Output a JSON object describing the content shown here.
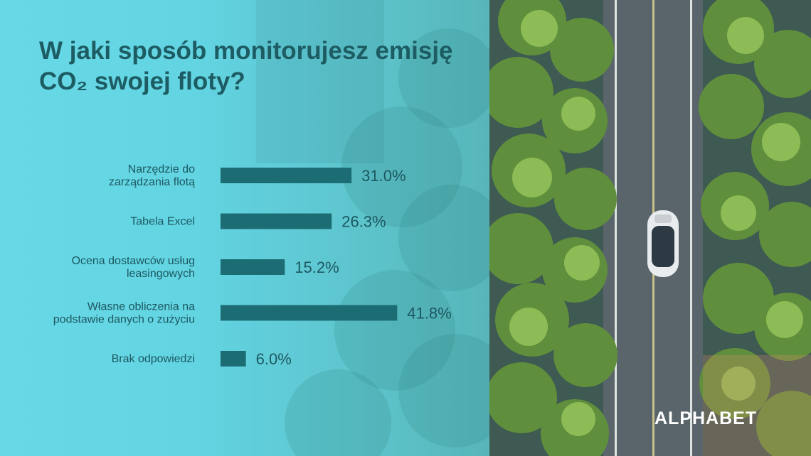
{
  "title": "W jaki sposób monitorujesz emisję CO₂ swojej floty?",
  "brand": "ALPHABET",
  "chart_data": {
    "type": "bar",
    "orientation": "horizontal",
    "title": "W jaki sposób monitorujesz emisję CO₂ swojej floty?",
    "categories": [
      [
        "Narzędzie do",
        "zarządzania flotą"
      ],
      [
        "Tabela Excel"
      ],
      [
        "Ocena dostawców usług",
        "leasingowych"
      ],
      [
        "Własne obliczenia na",
        "podstawie danych o zużyciu"
      ],
      [
        "Brak odpowiedzi"
      ]
    ],
    "values": [
      31.0,
      26.3,
      15.2,
      41.8,
      6.0
    ],
    "value_labels": [
      "31.0%",
      "26.3%",
      "15.2%",
      "41.8%",
      "6.0%"
    ],
    "unit": "%",
    "xlim": [
      0,
      100
    ],
    "grid": false,
    "legend": "none",
    "bar_color": "#1c6c74"
  },
  "colors": {
    "title": "#1d5c63",
    "panel_cyan": "#64d6e4",
    "bar": "#1c6c74"
  },
  "icons": [
    "car-icon",
    "tree-icon"
  ]
}
